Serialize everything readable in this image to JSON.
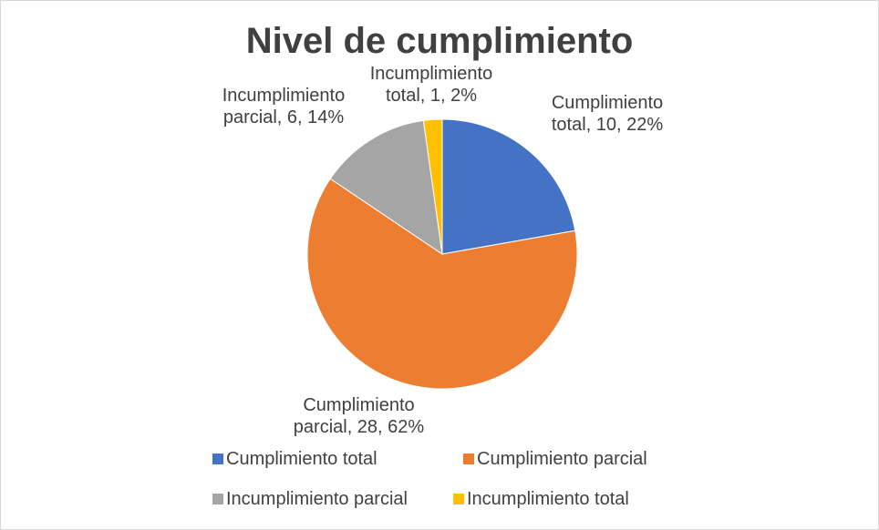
{
  "chart_data": {
    "type": "pie",
    "title": "Nivel de cumplimiento",
    "categories": [
      "Cumplimiento total",
      "Cumplimiento parcial",
      "Incumplimiento parcial",
      "Incumplimiento total"
    ],
    "values": [
      10,
      28,
      6,
      1
    ],
    "value_labels": [
      "Cumplimiento total, 10, 22%",
      "Cumplimiento parcial, 28, 62%",
      "Incumplimiento parcial, 6, 14%",
      "Incumplimiento total, 1, 2%"
    ],
    "colors": [
      "#4472c4",
      "#ed7d31",
      "#a5a5a5",
      "#ffc000"
    ],
    "legend": "bottom"
  }
}
